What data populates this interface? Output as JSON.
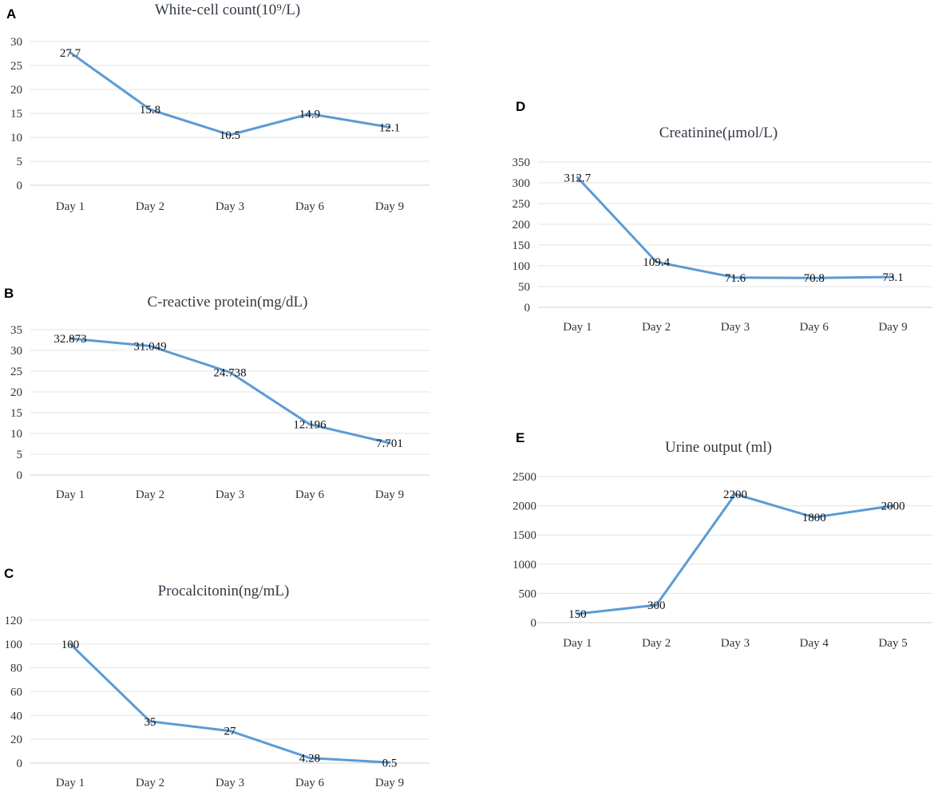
{
  "chart_data": [
    {
      "panel": "A",
      "type": "line",
      "title": "White-cell count(10⁹/L)",
      "categories": [
        "Day 1",
        "Day 2",
        "Day 3",
        "Day 6",
        "Day 9"
      ],
      "values": [
        27.7,
        15.8,
        10.5,
        14.9,
        12.1
      ],
      "data_labels": [
        "27.7",
        "15.8",
        "10.5",
        "14.9",
        "12.1"
      ],
      "yticks": [
        0,
        5,
        10,
        15,
        20,
        25,
        30
      ],
      "ylim": [
        0,
        30
      ],
      "grid": true,
      "color": "#5b9bd5"
    },
    {
      "panel": "B",
      "type": "line",
      "title": "C-reactive protein(mg/dL)",
      "categories": [
        "Day 1",
        "Day 2",
        "Day 3",
        "Day 6",
        "Day 9"
      ],
      "values": [
        32.873,
        31.049,
        24.738,
        12.196,
        7.701
      ],
      "data_labels": [
        "32.873",
        "31.049",
        "24.738",
        "12.196",
        "7.701"
      ],
      "yticks": [
        0,
        5,
        10,
        15,
        20,
        25,
        30,
        35
      ],
      "ylim": [
        0,
        35
      ],
      "grid": true,
      "color": "#5b9bd5"
    },
    {
      "panel": "C",
      "type": "line",
      "title": "Procalcitonin(ng/mL)",
      "categories": [
        "Day 1",
        "Day 2",
        "Day 3",
        "Day 6",
        "Day 9"
      ],
      "values": [
        100,
        35,
        27,
        4.28,
        0.5
      ],
      "data_labels": [
        "100",
        "35",
        "27",
        "4.28",
        "0.5"
      ],
      "yticks": [
        0,
        20,
        40,
        60,
        80,
        100,
        120
      ],
      "ylim": [
        0,
        120
      ],
      "grid": true,
      "color": "#5b9bd5"
    },
    {
      "panel": "D",
      "type": "line",
      "title": "Creatinine(μmol/L)",
      "categories": [
        "Day 1",
        "Day 2",
        "Day 3",
        "Day 6",
        "Day 9"
      ],
      "values": [
        312.7,
        109.4,
        71.6,
        70.8,
        73.1
      ],
      "data_labels": [
        "312.7",
        "109.4",
        "71.6",
        "70.8",
        "73.1"
      ],
      "yticks": [
        0,
        50,
        100,
        150,
        200,
        250,
        300,
        350
      ],
      "ylim": [
        0,
        350
      ],
      "grid": true,
      "color": "#5b9bd5"
    },
    {
      "panel": "E",
      "type": "line",
      "title": "Urine output (ml)",
      "categories": [
        "Day 1",
        "Day 2",
        "Day 3",
        "Day 4",
        "Day 5"
      ],
      "values": [
        150,
        300,
        2200,
        1800,
        2000
      ],
      "data_labels": [
        "150",
        "300",
        "2200",
        "1800",
        "2000"
      ],
      "yticks": [
        0,
        500,
        1000,
        1500,
        2000,
        2500
      ],
      "ylim": [
        0,
        2500
      ],
      "grid": true,
      "color": "#5b9bd5"
    }
  ]
}
